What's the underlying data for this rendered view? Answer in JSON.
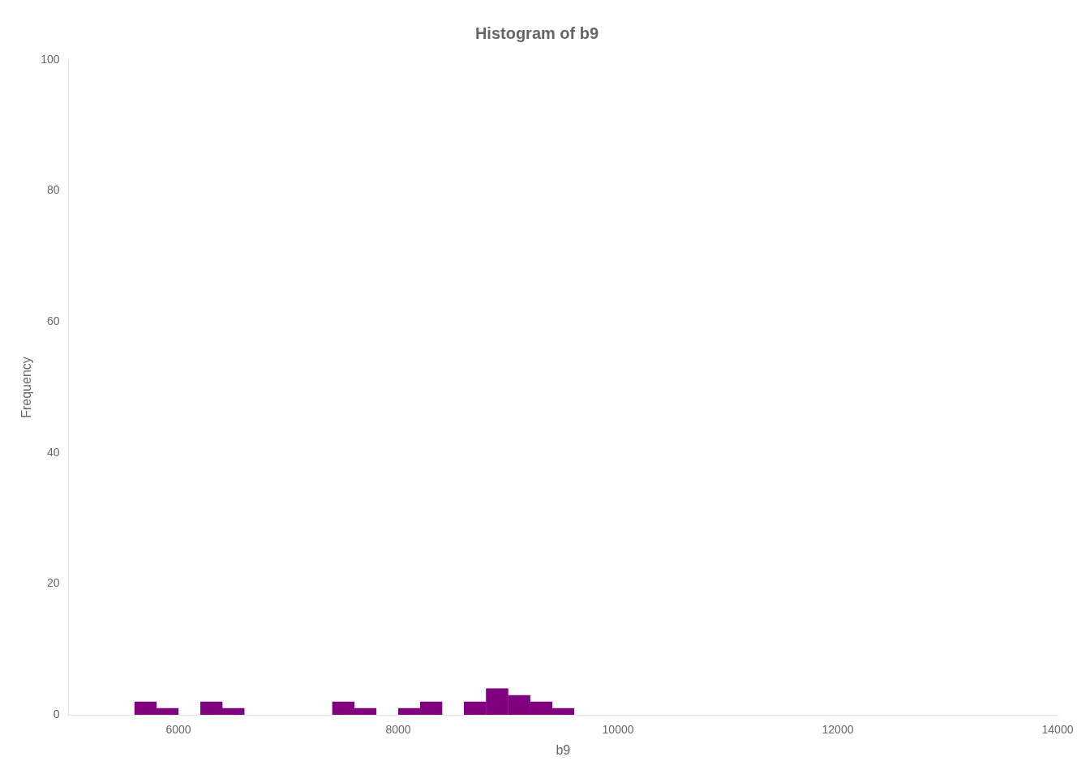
{
  "chart_data": {
    "type": "histogram",
    "title": "Histogram of b9",
    "xlabel": "b9",
    "ylabel": "Frequency",
    "bins": [
      5000,
      5200,
      5400,
      5600,
      5800,
      6000,
      6200,
      6400,
      6600,
      6800,
      7000,
      7200,
      7400,
      7600,
      7800,
      8000,
      8200,
      8400,
      8600,
      8800,
      9000,
      9200,
      9400,
      9600,
      9800,
      10000,
      10200,
      10400,
      10600,
      10800,
      11000,
      11200,
      11400,
      11600,
      11800,
      12000,
      12200,
      12400,
      12600,
      12800,
      13000,
      13200,
      13400,
      13600,
      13800,
      14000
    ],
    "values": [
      0,
      0,
      0,
      2,
      1,
      0,
      2,
      1,
      0,
      0,
      0,
      0,
      2,
      1,
      0,
      1,
      2,
      0,
      2,
      4,
      3,
      2,
      1,
      0,
      0,
      0,
      0,
      0,
      0,
      0,
      0,
      0,
      0,
      0,
      0,
      0,
      0,
      0,
      0,
      0,
      0,
      0,
      0,
      0,
      0
    ],
    "color": "#800080",
    "xlim": [
      5000,
      14000
    ],
    "ylim": [
      0,
      100
    ],
    "xticks": [
      6000,
      8000,
      10000,
      12000,
      14000
    ],
    "yticks": [
      0,
      20,
      40,
      60,
      80,
      100
    ],
    "grid": false
  }
}
